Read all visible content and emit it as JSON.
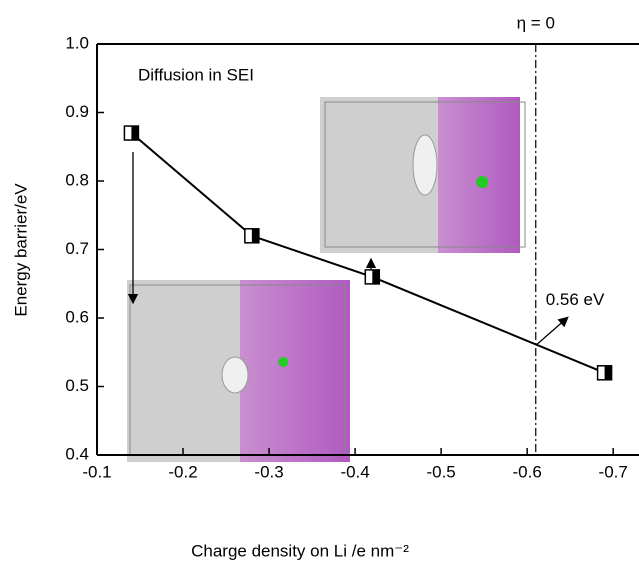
{
  "chart_data": {
    "type": "line",
    "x_label": "Charge density on Li /e nm⁻²",
    "y_label": "Energy barrier/eV",
    "x": [
      -0.14,
      -0.28,
      -0.42,
      -0.69
    ],
    "series": [
      {
        "color": "#000000",
        "values": [
          0.87,
          0.72,
          0.66,
          0.52
        ]
      }
    ],
    "xlim": [
      -0.1,
      -0.73
    ],
    "xticks": [
      -0.1,
      -0.2,
      -0.3,
      -0.4,
      -0.5,
      -0.6,
      -0.7
    ],
    "ylim": [
      0.4,
      1.0
    ],
    "yticks": [
      {
        "value": 0.4,
        "label": "0.4"
      },
      0.5,
      0.6,
      0.7,
      0.8,
      0.9,
      {
        "value": 1.0,
        "label": "1.0"
      }
    ],
    "vline": {
      "x": -0.61,
      "label": "η = 0"
    },
    "annotations": [
      {
        "text": "Diffusion in SEI"
      },
      {
        "text": "0.56 eV",
        "x": -0.61,
        "y": 0.56
      }
    ]
  }
}
